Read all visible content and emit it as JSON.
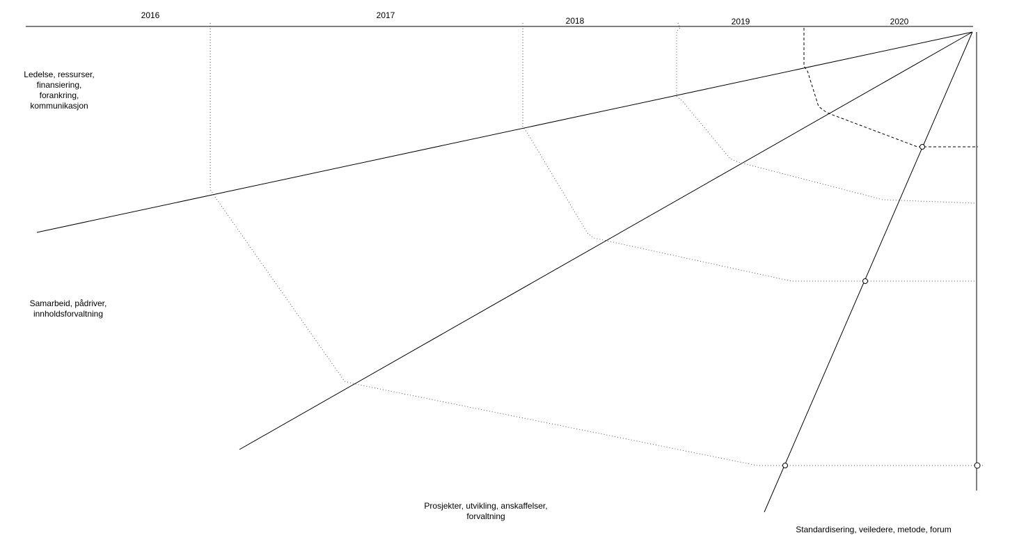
{
  "years": [
    "2016",
    "2017",
    "2018",
    "2019",
    "2020"
  ],
  "areas": {
    "leadership": "Ledelse, ressurser,\nfinansiering,\nforankring,\nkommunikasjon",
    "cooperation": "Samarbeid, pådriver,\ninnholdsforvaltning",
    "projects": "Prosjekter, utvikling, anskaffelser,\nforvaltning",
    "standardization": "Standardisering, veiledere, metode, forum"
  }
}
